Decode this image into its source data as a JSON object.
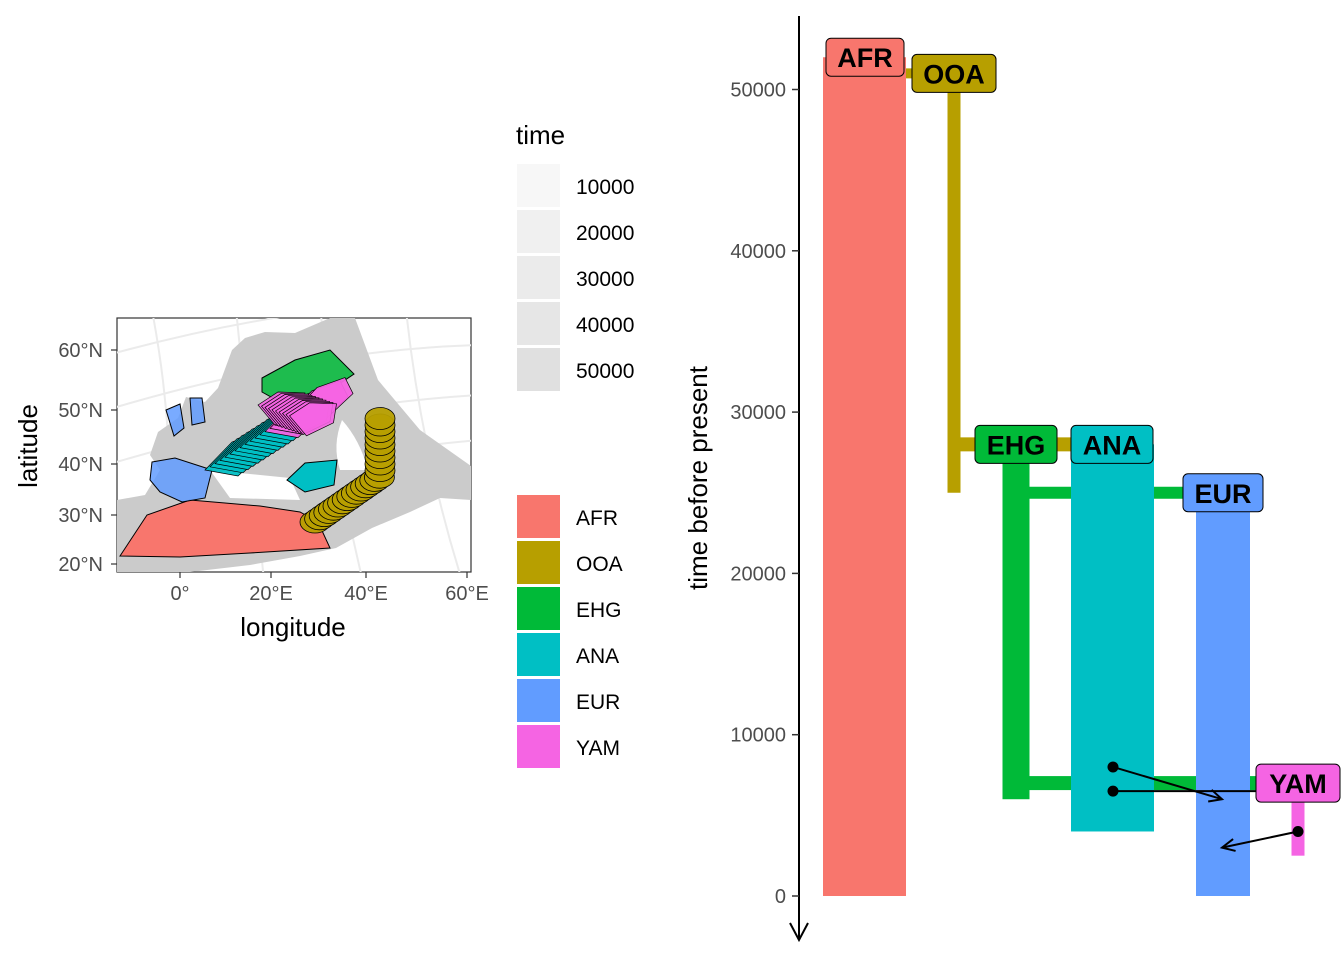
{
  "map": {
    "xlabel": "longitude",
    "ylabel": "latitude",
    "x_ticks": [
      "0°",
      "20°E",
      "40°E",
      "60°E"
    ],
    "y_ticks": [
      "20°N",
      "30°N",
      "40°N",
      "50°N",
      "60°N"
    ],
    "land_color": "#cbcbcb",
    "grid_color": "#ebebeb"
  },
  "legend": {
    "time_title": "time",
    "time_items": [
      {
        "label": "10000",
        "color": "#f7f7f7"
      },
      {
        "label": "20000",
        "color": "#f0f0f0"
      },
      {
        "label": "30000",
        "color": "#ebebeb"
      },
      {
        "label": "40000",
        "color": "#e6e6e6"
      },
      {
        "label": "50000",
        "color": "#e0e0e0"
      }
    ],
    "pop_items": [
      {
        "label": "AFR",
        "color": "#F8766D"
      },
      {
        "label": "OOA",
        "color": "#B79F00"
      },
      {
        "label": "EHG",
        "color": "#00BA38"
      },
      {
        "label": "ANA",
        "color": "#00BFC4"
      },
      {
        "label": "EUR",
        "color": "#619CFF"
      },
      {
        "label": "YAM",
        "color": "#F564E3"
      }
    ]
  },
  "chart_data": {
    "type": "population-tree",
    "ylabel": "time before present",
    "y_ticks": [
      0,
      10000,
      20000,
      30000,
      40000,
      50000
    ],
    "ylim": [
      0,
      55000
    ],
    "populations": [
      {
        "name": "AFR",
        "color": "#F8766D",
        "start": 52000,
        "end": 0
      },
      {
        "name": "OOA",
        "color": "#B79F00",
        "start": 51000,
        "end": 25000,
        "parent": "AFR"
      },
      {
        "name": "EHG",
        "color": "#00BA38",
        "start": 28000,
        "end": 6000,
        "parent": "OOA"
      },
      {
        "name": "ANA",
        "color": "#00BFC4",
        "start": 28000,
        "end": 4000,
        "parent": "OOA"
      },
      {
        "name": "EUR",
        "color": "#619CFF",
        "start": 25000,
        "end": 0,
        "parent": "EHG"
      },
      {
        "name": "YAM",
        "color": "#F564E3",
        "start": 7000,
        "end": 2500,
        "parent": "EHG"
      }
    ],
    "gene_flows": [
      {
        "from": "ANA",
        "to": "EUR",
        "start": 8000,
        "end": 6000
      },
      {
        "from": "EHG",
        "to": "YAM",
        "start": 6500,
        "end": 6500
      },
      {
        "from": "YAM",
        "to": "EUR",
        "start": 4000,
        "end": 3000
      }
    ]
  }
}
